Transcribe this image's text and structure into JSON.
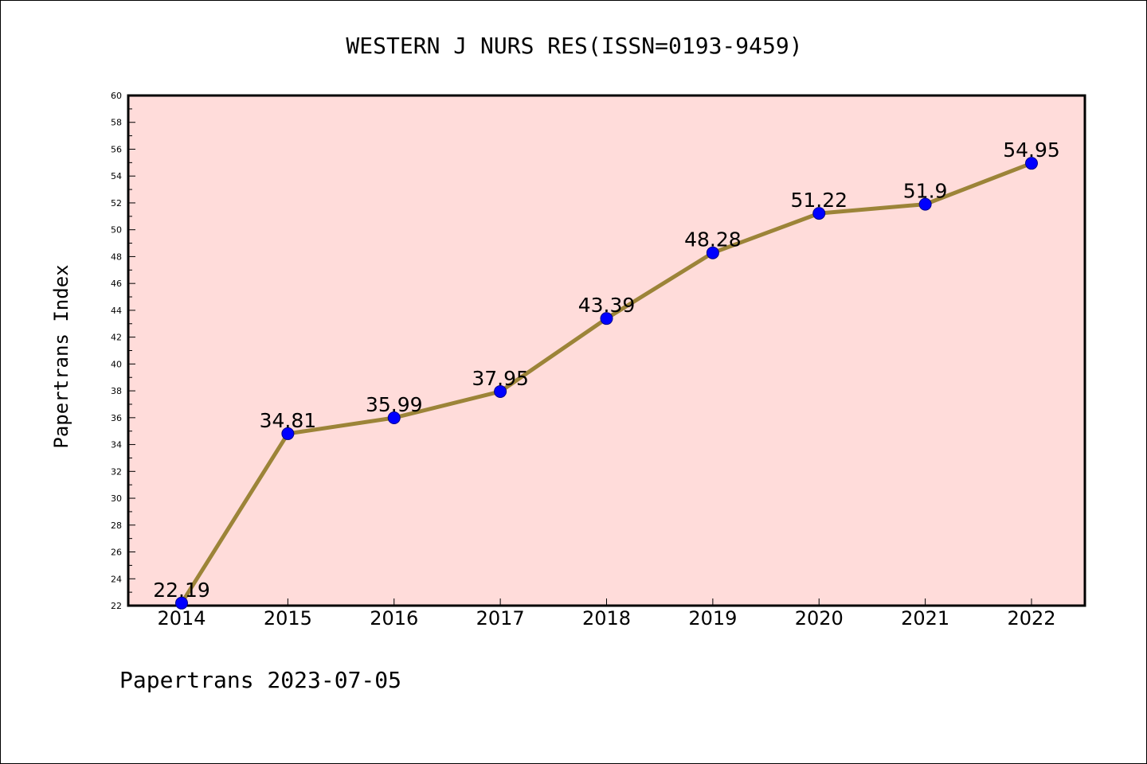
{
  "chart_data": {
    "type": "line",
    "title": "WESTERN J NURS RES(ISSN=0193-9459)",
    "xlabel": "",
    "ylabel": "Papertrans Index",
    "footer": "Papertrans 2023-07-05",
    "categories": [
      "2014",
      "2015",
      "2016",
      "2017",
      "2018",
      "2019",
      "2020",
      "2021",
      "2022"
    ],
    "series": [
      {
        "values": [
          22.19,
          34.81,
          35.99,
          37.95,
          43.39,
          48.28,
          51.22,
          51.9,
          54.95
        ],
        "labels": [
          "22.19",
          "34.81",
          "35.99",
          "37.95",
          "43.39",
          "48.28",
          "51.22",
          "51.9",
          "54.95"
        ]
      }
    ],
    "ylim": [
      22,
      60
    ],
    "ytick_step": 2,
    "grid": false,
    "legend": "none",
    "colors": {
      "plot_background": "#FFDCDA",
      "line": "#9C8438",
      "marker": "#0000FF",
      "axes": "#000000"
    }
  }
}
